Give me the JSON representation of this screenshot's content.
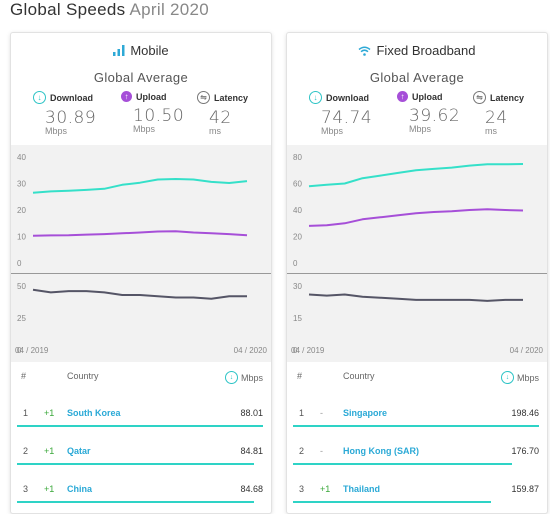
{
  "page": {
    "title": "Global Speeds",
    "subtitle": "April 2020"
  },
  "colors": {
    "download": "#35e0c9",
    "upload": "#a64fd8",
    "latency": "#555566",
    "accent": "#2ea9d6"
  },
  "panels": [
    {
      "id": "mobile",
      "title": "Mobile",
      "icon": "signal-bars-icon",
      "avg_title": "Global Average",
      "metrics": {
        "download": {
          "label": "Download",
          "value": "30.89",
          "unit": "Mbps"
        },
        "upload": {
          "label": "Upload",
          "value": "10.50",
          "unit": "Mbps"
        },
        "latency": {
          "label": "Latency",
          "value": "42",
          "unit": "ms"
        }
      },
      "chart_top_ticks": [
        "40",
        "30",
        "20",
        "10",
        "0"
      ],
      "chart_bottom_ticks": [
        "50",
        "25",
        "0"
      ],
      "x_start": "04 / 2019",
      "x_end": "04 / 2020",
      "table": {
        "col_rank": "#",
        "col_country": "Country",
        "col_speed": "Mbps",
        "rows": [
          {
            "rank": "1",
            "change": "+1",
            "country": "South Korea",
            "speed": "88.01",
            "fraction": 1.0
          },
          {
            "rank": "2",
            "change": "+1",
            "country": "Qatar",
            "speed": "84.81",
            "fraction": 0.964
          },
          {
            "rank": "3",
            "change": "+1",
            "country": "China",
            "speed": "84.68",
            "fraction": 0.962
          }
        ]
      }
    },
    {
      "id": "fixed",
      "title": "Fixed Broadband",
      "icon": "wifi-icon",
      "avg_title": "Global Average",
      "metrics": {
        "download": {
          "label": "Download",
          "value": "74.74",
          "unit": "Mbps"
        },
        "upload": {
          "label": "Upload",
          "value": "39.62",
          "unit": "Mbps"
        },
        "latency": {
          "label": "Latency",
          "value": "24",
          "unit": "ms"
        }
      },
      "chart_top_ticks": [
        "80",
        "60",
        "40",
        "20",
        "0"
      ],
      "chart_bottom_ticks": [
        "30",
        "15",
        "0"
      ],
      "x_start": "04 / 2019",
      "x_end": "04 / 2020",
      "table": {
        "col_rank": "#",
        "col_country": "Country",
        "col_speed": "Mbps",
        "rows": [
          {
            "rank": "1",
            "change": "-",
            "country": "Singapore",
            "speed": "198.46",
            "fraction": 1.0
          },
          {
            "rank": "2",
            "change": "-",
            "country": "Hong Kong (SAR)",
            "speed": "176.70",
            "fraction": 0.89
          },
          {
            "rank": "3",
            "change": "+1",
            "country": "Thailand",
            "speed": "159.87",
            "fraction": 0.806
          }
        ]
      }
    }
  ],
  "chart_data": [
    {
      "type": "line",
      "ylim": [
        0,
        40
      ],
      "x": [
        "04/2019",
        "05/2019",
        "06/2019",
        "07/2019",
        "08/2019",
        "09/2019",
        "10/2019",
        "11/2019",
        "12/2019",
        "01/2020",
        "02/2020",
        "03/2020",
        "04/2020"
      ],
      "series": [
        {
          "name": "Download",
          "values": [
            26.5,
            27,
            27.3,
            27.6,
            28,
            29.5,
            30.3,
            31.5,
            31.7,
            31.5,
            30.6,
            30.2,
            30.9
          ]
        },
        {
          "name": "Upload",
          "values": [
            10.3,
            10.4,
            10.5,
            10.7,
            10.9,
            11.2,
            11.5,
            11.9,
            12,
            11.5,
            11.2,
            10.9,
            10.5
          ]
        }
      ]
    },
    {
      "type": "line",
      "ylim": [
        0,
        50
      ],
      "x": [
        "04/2019",
        "05/2019",
        "06/2019",
        "07/2019",
        "08/2019",
        "09/2019",
        "10/2019",
        "11/2019",
        "12/2019",
        "01/2020",
        "02/2020",
        "03/2020",
        "04/2020"
      ],
      "series": [
        {
          "name": "Latency",
          "values": [
            47,
            45,
            46,
            46,
            45,
            43,
            43,
            42,
            41,
            41,
            40,
            42,
            42
          ]
        }
      ]
    },
    {
      "type": "line",
      "ylim": [
        0,
        80
      ],
      "x": [
        "04/2019",
        "05/2019",
        "06/2019",
        "07/2019",
        "08/2019",
        "09/2019",
        "10/2019",
        "11/2019",
        "12/2019",
        "01/2020",
        "02/2020",
        "03/2020",
        "04/2020"
      ],
      "series": [
        {
          "name": "Download",
          "values": [
            58,
            59,
            60,
            64,
            66,
            68,
            70,
            71,
            72,
            73.5,
            74.5,
            74.5,
            74.7
          ]
        },
        {
          "name": "Upload",
          "values": [
            28,
            28.5,
            30,
            33,
            34.5,
            36,
            37.5,
            38.5,
            39,
            40,
            40.5,
            40,
            39.6
          ]
        }
      ]
    },
    {
      "type": "line",
      "ylim": [
        0,
        30
      ],
      "x": [
        "04/2019",
        "05/2019",
        "06/2019",
        "07/2019",
        "08/2019",
        "09/2019",
        "10/2019",
        "11/2019",
        "12/2019",
        "01/2020",
        "02/2020",
        "03/2020",
        "04/2020"
      ],
      "series": [
        {
          "name": "Latency",
          "values": [
            26,
            25.5,
            26,
            25,
            24.5,
            24,
            23.5,
            23.5,
            23.5,
            23.5,
            23,
            23.5,
            23.5
          ]
        }
      ]
    }
  ]
}
